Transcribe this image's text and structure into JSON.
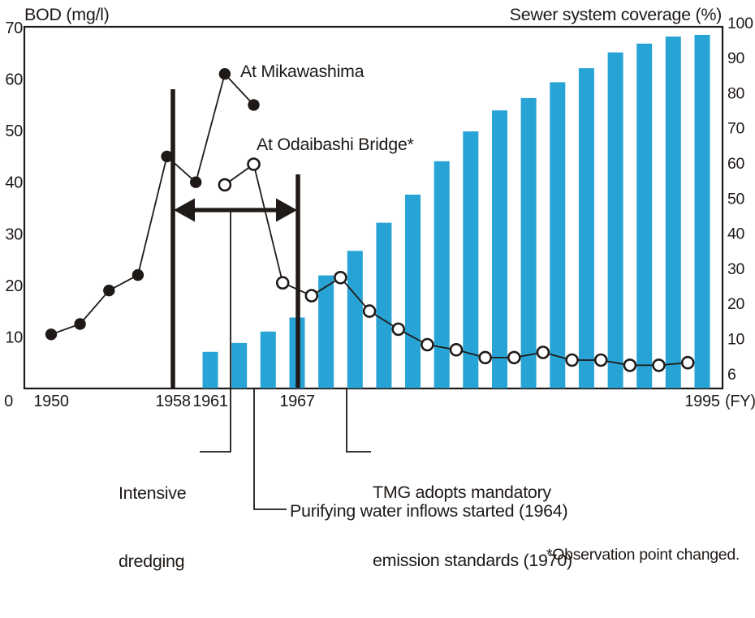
{
  "page": {
    "background": "#ffffff",
    "ink_color": "#1f1a17",
    "bar_color": "#28a3d5"
  },
  "chart_data": {
    "type": "combo-line-bar",
    "left_axis": {
      "title": "BOD (mg/l)",
      "ticks": [
        70,
        60,
        50,
        40,
        30,
        20,
        10,
        0
      ],
      "range": [
        0,
        70
      ]
    },
    "right_axis": {
      "title": "Sewer system coverage (%)",
      "ticks": [
        100,
        90,
        80,
        70,
        60,
        50,
        40,
        30,
        20,
        10,
        6
      ]
    },
    "x_axis": {
      "tick_labels": [
        "1950",
        "1958",
        "1961",
        "1967",
        "1995"
      ],
      "unit_label": "(FY)",
      "range_years": [
        1950,
        1995
      ]
    },
    "series": [
      {
        "name": "At Mikawashima",
        "type": "line",
        "marker": "filled-circle",
        "color": "#1f1a17",
        "x": [
          1950,
          1952,
          1954,
          1956,
          1958,
          1960,
          1962,
          1964
        ],
        "y": [
          10.5,
          12.5,
          19,
          22,
          45,
          40,
          61,
          55
        ]
      },
      {
        "name": "At Odaibashi Bridge*",
        "type": "line",
        "marker": "open-circle",
        "color": "#1f1a17",
        "x": [
          1962,
          1964,
          1966,
          1968,
          1970,
          1972,
          1974,
          1976,
          1978,
          1980,
          1982,
          1984,
          1986,
          1988,
          1990,
          1992,
          1994
        ],
        "y": [
          39.5,
          43.5,
          20.5,
          18,
          21.5,
          15,
          11.5,
          8.5,
          7.5,
          6,
          6,
          7,
          5.5,
          5.5,
          4.5,
          4.5,
          5
        ]
      },
      {
        "name": "Sewer system coverage",
        "type": "bar",
        "color": "#28a3d5",
        "x": [
          1961,
          1963,
          1965,
          1967,
          1969,
          1971,
          1973,
          1975,
          1977,
          1979,
          1981,
          1983,
          1985,
          1987,
          1989,
          1991,
          1993,
          1995
        ],
        "y": [
          8.5,
          9.5,
          12,
          16,
          28,
          35,
          43,
          51,
          60.5,
          69,
          75,
          78.5,
          83,
          87,
          91.5,
          94,
          96,
          96.5
        ]
      }
    ],
    "annotations": {
      "dredging_period": {
        "label_lines": [
          "Intensive",
          "dredging"
        ],
        "from_year": 1958,
        "to_year": 1967
      },
      "purifying": {
        "label_lines": [
          "Purifying water inflows started (1964)"
        ],
        "year": 1964
      },
      "tmg": {
        "label_lines": [
          "TMG adopts mandatory",
          "emission standards (1970)"
        ],
        "year": 1970
      }
    },
    "footnote": "*Observation point changed."
  }
}
